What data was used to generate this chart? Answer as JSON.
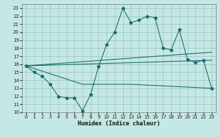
{
  "title": "",
  "xlabel": "Humidex (Indice chaleur)",
  "background_color": "#c5e8e5",
  "grid_color": "#9dc8c5",
  "line_color": "#1a6b6b",
  "xlim": [
    -0.5,
    23.5
  ],
  "ylim": [
    10,
    23.5
  ],
  "xticks": [
    0,
    1,
    2,
    3,
    4,
    5,
    6,
    7,
    8,
    9,
    10,
    11,
    12,
    13,
    14,
    15,
    16,
    17,
    18,
    19,
    20,
    21,
    22,
    23
  ],
  "yticks": [
    10,
    11,
    12,
    13,
    14,
    15,
    16,
    17,
    18,
    19,
    20,
    21,
    22,
    23
  ],
  "line1_x": [
    0,
    1,
    2,
    3,
    4,
    5,
    6,
    7,
    8,
    9,
    10,
    11,
    12,
    13,
    14,
    15,
    16,
    17,
    18,
    19,
    20,
    21,
    22,
    23
  ],
  "line1_y": [
    15.8,
    15.0,
    14.5,
    13.5,
    12.0,
    11.8,
    11.8,
    10.2,
    12.2,
    15.7,
    18.5,
    20.0,
    23.0,
    21.2,
    21.5,
    22.0,
    21.8,
    18.0,
    17.8,
    20.3,
    16.6,
    16.2,
    16.5,
    13.0
  ],
  "line2_x": [
    0,
    23
  ],
  "line2_y": [
    15.8,
    17.5
  ],
  "line3_x": [
    0,
    23
  ],
  "line3_y": [
    15.8,
    16.5
  ],
  "line4_x": [
    0,
    7,
    13,
    23
  ],
  "line4_y": [
    15.8,
    13.5,
    13.5,
    13.0
  ],
  "tick_fontsize": 5,
  "xlabel_fontsize": 6,
  "lw": 0.8,
  "ms": 2.0
}
